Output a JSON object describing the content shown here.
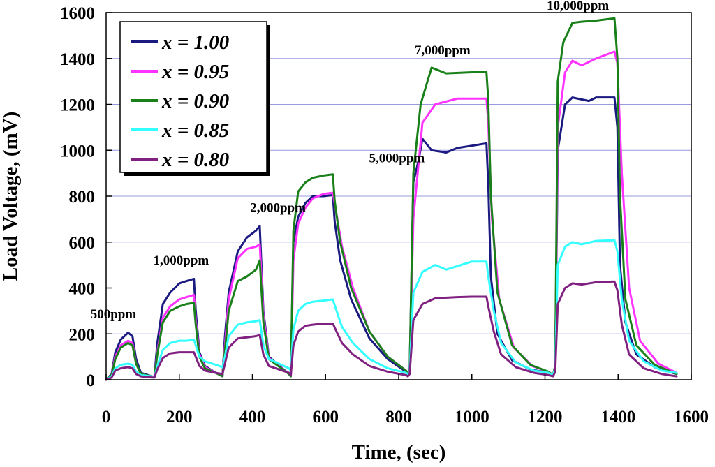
{
  "chart_data": {
    "type": "line",
    "title": "",
    "xlabel": "Time, (sec)",
    "ylabel": "Load Voltage, (mV)",
    "xlim": [
      0,
      1600
    ],
    "ylim": [
      0,
      1600
    ],
    "x_ticks": [
      "0",
      "200",
      "400",
      "600",
      "800",
      "1000",
      "1200",
      "1400",
      "1600"
    ],
    "y_ticks": [
      "0",
      "200",
      "400",
      "600",
      "800",
      "1000",
      "1200",
      "1400",
      "1600"
    ],
    "grid": "horizontal",
    "legend_position": "top-left",
    "annotations": [
      {
        "text": "500ppm",
        "x": 20,
        "y": 255
      },
      {
        "text": "1,000ppm",
        "x": 205,
        "y": 490
      },
      {
        "text": "2,000ppm",
        "x": 470,
        "y": 720
      },
      {
        "text": "5,000ppm",
        "x": 795,
        "y": 935
      },
      {
        "text": "7,000ppm",
        "x": 920,
        "y": 1405
      },
      {
        "text": "10,000ppm",
        "x": 1290,
        "y": 1600
      }
    ],
    "series": [
      {
        "name": "x = 1.00",
        "color": "#1a1a80",
        "x": [
          0,
          15,
          25,
          40,
          60,
          72,
          82,
          95,
          125,
          132,
          140,
          155,
          175,
          200,
          220,
          240,
          245,
          255,
          270,
          300,
          318,
          325,
          335,
          360,
          385,
          410,
          420,
          430,
          445,
          500,
          505,
          512,
          525,
          545,
          565,
          595,
          620,
          625,
          640,
          670,
          720,
          770,
          820,
          825,
          830,
          840,
          855,
          865,
          890,
          930,
          960,
          1000,
          1040,
          1045,
          1052,
          1070,
          1110,
          1160,
          1210,
          1222,
          1228,
          1235,
          1255,
          1275,
          1320,
          1340,
          1390,
          1398,
          1405,
          1420,
          1450,
          1500,
          1560
        ],
        "y": [
          0,
          25,
          120,
          175,
          205,
          190,
          90,
          30,
          15,
          10,
          160,
          330,
          380,
          420,
          430,
          440,
          300,
          120,
          60,
          30,
          15,
          190,
          380,
          560,
          620,
          650,
          670,
          300,
          100,
          25,
          15,
          600,
          710,
          770,
          800,
          800,
          805,
          690,
          520,
          350,
          180,
          90,
          35,
          25,
          40,
          860,
          960,
          1050,
          1000,
          990,
          1010,
          1020,
          1030,
          850,
          450,
          200,
          85,
          45,
          30,
          20,
          60,
          1000,
          1200,
          1230,
          1215,
          1230,
          1230,
          1100,
          500,
          250,
          110,
          55,
          25
        ]
      },
      {
        "name": "x = 0.95",
        "color": "#ff33ff",
        "x": [
          0,
          15,
          25,
          40,
          60,
          72,
          82,
          95,
          125,
          132,
          140,
          155,
          175,
          200,
          220,
          240,
          245,
          255,
          270,
          300,
          318,
          325,
          335,
          360,
          385,
          410,
          420,
          430,
          445,
          500,
          505,
          512,
          525,
          545,
          565,
          595,
          620,
          630,
          645,
          675,
          720,
          770,
          820,
          825,
          830,
          840,
          865,
          900,
          960,
          1000,
          1040,
          1045,
          1055,
          1075,
          1115,
          1165,
          1210,
          1222,
          1228,
          1235,
          1255,
          1275,
          1300,
          1340,
          1390,
          1398,
          1410,
          1430,
          1460,
          1510,
          1560
        ],
        "y": [
          0,
          20,
          100,
          150,
          170,
          160,
          70,
          25,
          15,
          10,
          120,
          270,
          320,
          350,
          360,
          370,
          260,
          110,
          55,
          30,
          15,
          150,
          350,
          530,
          570,
          580,
          590,
          280,
          95,
          25,
          15,
          520,
          680,
          750,
          790,
          810,
          815,
          720,
          580,
          400,
          210,
          100,
          40,
          25,
          40,
          700,
          1120,
          1200,
          1225,
          1225,
          1225,
          1120,
          700,
          350,
          140,
          60,
          35,
          20,
          60,
          1100,
          1340,
          1390,
          1370,
          1400,
          1430,
          1380,
          900,
          400,
          170,
          70,
          30
        ]
      },
      {
        "name": "x = 0.90",
        "color": "#1a801a",
        "x": [
          0,
          15,
          25,
          40,
          60,
          72,
          82,
          95,
          125,
          132,
          140,
          155,
          175,
          200,
          220,
          240,
          245,
          255,
          270,
          300,
          318,
          325,
          335,
          360,
          385,
          410,
          420,
          430,
          445,
          500,
          505,
          512,
          525,
          545,
          565,
          595,
          620,
          625,
          640,
          670,
          720,
          770,
          820,
          825,
          830,
          840,
          860,
          890,
          930,
          1000,
          1040,
          1045,
          1052,
          1070,
          1110,
          1160,
          1210,
          1222,
          1228,
          1235,
          1250,
          1275,
          1300,
          1340,
          1390,
          1398,
          1405,
          1420,
          1450,
          1500,
          1560
        ],
        "y": [
          0,
          20,
          90,
          140,
          160,
          150,
          70,
          25,
          15,
          10,
          110,
          250,
          300,
          320,
          330,
          335,
          240,
          100,
          50,
          30,
          15,
          130,
          300,
          430,
          450,
          480,
          520,
          250,
          90,
          25,
          15,
          650,
          820,
          860,
          880,
          890,
          895,
          780,
          600,
          400,
          210,
          100,
          40,
          25,
          40,
          900,
          1200,
          1360,
          1335,
          1340,
          1340,
          1220,
          800,
          380,
          150,
          65,
          35,
          20,
          60,
          1300,
          1470,
          1555,
          1560,
          1565,
          1575,
          1400,
          800,
          350,
          150,
          65,
          25
        ]
      },
      {
        "name": "x = 0.85",
        "color": "#33ffff",
        "x": [
          0,
          15,
          25,
          40,
          60,
          72,
          82,
          95,
          125,
          132,
          140,
          155,
          175,
          200,
          220,
          240,
          245,
          255,
          270,
          300,
          318,
          325,
          335,
          360,
          385,
          410,
          420,
          430,
          445,
          500,
          505,
          512,
          525,
          545,
          565,
          595,
          620,
          630,
          645,
          675,
          720,
          770,
          820,
          825,
          830,
          840,
          865,
          900,
          930,
          1000,
          1040,
          1045,
          1060,
          1080,
          1120,
          1170,
          1210,
          1222,
          1228,
          1235,
          1255,
          1275,
          1300,
          1340,
          1390,
          1398,
          1410,
          1430,
          1470,
          1520,
          1560
        ],
        "y": [
          0,
          15,
          50,
          65,
          70,
          65,
          35,
          20,
          15,
          10,
          60,
          130,
          160,
          170,
          170,
          175,
          150,
          100,
          80,
          65,
          55,
          100,
          190,
          240,
          250,
          255,
          260,
          150,
          90,
          50,
          40,
          220,
          300,
          330,
          340,
          345,
          350,
          300,
          230,
          160,
          90,
          50,
          30,
          25,
          35,
          380,
          470,
          500,
          480,
          515,
          515,
          450,
          300,
          160,
          75,
          40,
          30,
          20,
          50,
          500,
          580,
          600,
          590,
          605,
          608,
          560,
          350,
          170,
          80,
          40,
          30
        ]
      },
      {
        "name": "x = 0.80",
        "color": "#802080",
        "x": [
          0,
          15,
          25,
          40,
          60,
          72,
          82,
          95,
          125,
          132,
          140,
          155,
          175,
          200,
          220,
          240,
          245,
          255,
          270,
          300,
          318,
          325,
          335,
          360,
          385,
          410,
          420,
          430,
          445,
          500,
          505,
          512,
          525,
          545,
          565,
          595,
          620,
          630,
          645,
          675,
          720,
          770,
          820,
          825,
          830,
          840,
          865,
          900,
          960,
          1000,
          1040,
          1045,
          1060,
          1080,
          1120,
          1170,
          1210,
          1222,
          1228,
          1235,
          1255,
          1275,
          1300,
          1340,
          1390,
          1398,
          1410,
          1430,
          1470,
          1520,
          1560
        ],
        "y": [
          0,
          10,
          40,
          50,
          55,
          50,
          25,
          15,
          10,
          10,
          45,
          95,
          115,
          120,
          120,
          120,
          100,
          60,
          40,
          30,
          25,
          70,
          140,
          180,
          185,
          190,
          195,
          110,
          60,
          30,
          20,
          150,
          210,
          235,
          240,
          245,
          245,
          210,
          160,
          110,
          60,
          35,
          20,
          15,
          25,
          260,
          330,
          355,
          360,
          362,
          362,
          320,
          210,
          110,
          55,
          30,
          20,
          15,
          35,
          330,
          400,
          420,
          415,
          425,
          428,
          390,
          240,
          110,
          50,
          25,
          15
        ]
      }
    ]
  }
}
